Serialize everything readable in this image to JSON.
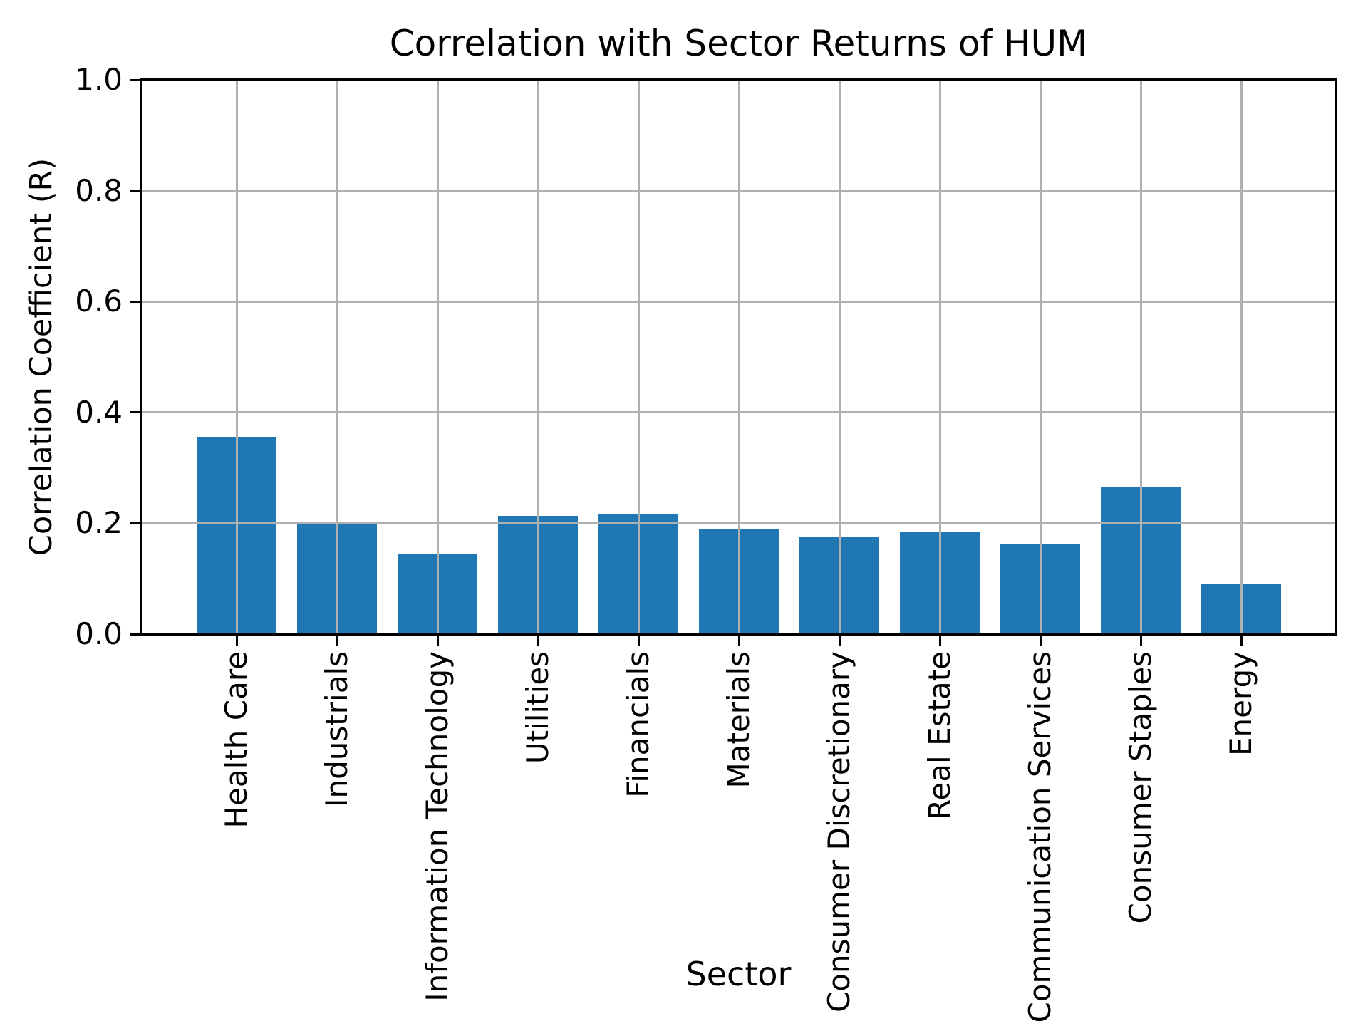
{
  "chart_data": {
    "type": "bar",
    "title": "Correlation with Sector Returns of HUM",
    "xlabel": "Sector",
    "ylabel": "Correlation Coefficient (R)",
    "categories": [
      "Health Care",
      "Industrials",
      "Information Technology",
      "Utilities",
      "Financials",
      "Materials",
      "Consumer Discretionary",
      "Real Estate",
      "Communication Services",
      "Consumer Staples",
      "Energy"
    ],
    "values": [
      0.356,
      0.198,
      0.145,
      0.214,
      0.216,
      0.189,
      0.176,
      0.185,
      0.162,
      0.265,
      0.091
    ],
    "ylim": [
      0.0,
      1.0
    ],
    "yticks": [
      0.0,
      0.2,
      0.4,
      0.6,
      0.8,
      1.0
    ],
    "ytick_labels": [
      "0.0",
      "0.2",
      "0.4",
      "0.6",
      "0.8",
      "1.0"
    ],
    "x_tick_rotation": 90,
    "grid": "on",
    "legend": "none",
    "bar_color": "#1f77b4",
    "grid_color": "#b0b0b0",
    "spine_color": "#000000",
    "background_color": "#ffffff"
  }
}
